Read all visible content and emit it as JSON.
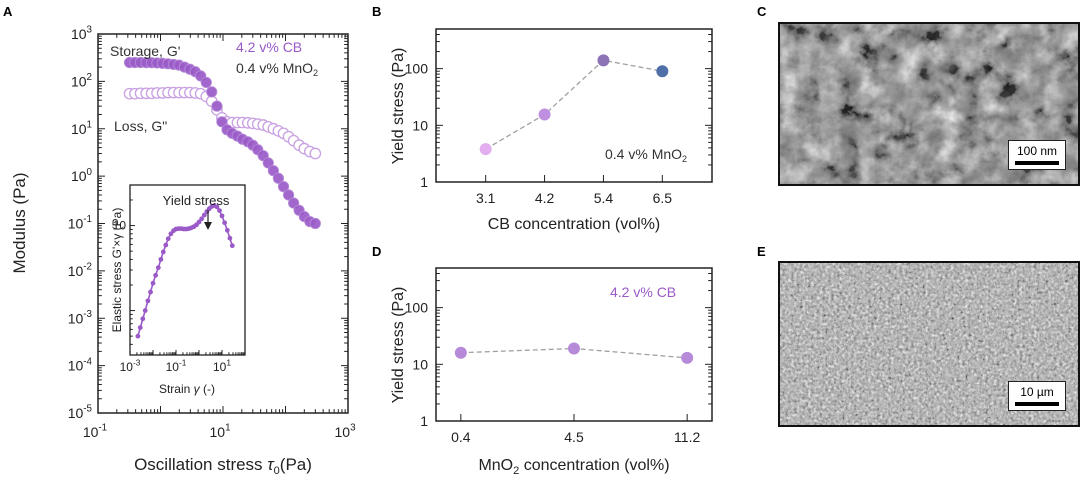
{
  "panel_labels": {
    "a": "A",
    "b": "B",
    "c": "C",
    "d": "D",
    "e": "E"
  },
  "colors": {
    "purple": "#9a5ac8",
    "purple_light": "#c9a0e3",
    "pink": "#e3aef0",
    "mid_purple": "#8c74b6",
    "blue": "#4f6fa8",
    "dashed": "#a0a0a0",
    "text": "#222222"
  },
  "sem_c": {
    "scale_label": "100 nm"
  },
  "sem_e": {
    "scale_label": "10 µm"
  },
  "chart_data": [
    {
      "id": "A",
      "type": "scatter",
      "x_scale": "log",
      "y_scale": "log",
      "xlabel": "Oscillation stress",
      "xlabel_symbol": "τ",
      "xlabel_sub": "0",
      "xlabel_unit": "(Pa)",
      "ylabel": "Modulus (Pa)",
      "xlim": [
        0.1,
        1000
      ],
      "ylim": [
        1e-05,
        1000
      ],
      "x_ticks": [
        {
          "v": 0.1,
          "b": "10",
          "e": "-1"
        },
        {
          "v": 10,
          "b": "10",
          "e": "1"
        },
        {
          "v": 1000,
          "b": "10",
          "e": "3"
        }
      ],
      "y_ticks": [
        {
          "v": 1000,
          "b": "10",
          "e": "3"
        },
        {
          "v": 100,
          "b": "10",
          "e": "2"
        },
        {
          "v": 10,
          "b": "10",
          "e": "1"
        },
        {
          "v": 1,
          "b": "10",
          "e": "0"
        },
        {
          "v": 0.1,
          "b": "10",
          "e": "-1"
        },
        {
          "v": 0.01,
          "b": "10",
          "e": "-2"
        },
        {
          "v": 0.001,
          "b": "10",
          "e": "-3"
        },
        {
          "v": 0.0001,
          "b": "10",
          "e": "-4"
        },
        {
          "v": 1e-05,
          "b": "10",
          "e": "-5"
        }
      ],
      "series": [
        {
          "name": "Storage, G'",
          "marker": "filled",
          "x": [
            0.32,
            0.39,
            0.48,
            0.59,
            0.72,
            0.88,
            1.08,
            1.32,
            1.62,
            1.98,
            2.42,
            2.96,
            3.6,
            4.4,
            5.4,
            6.6,
            8.0,
            9.6,
            11.6,
            14,
            17,
            20.5,
            25,
            30,
            36,
            44,
            53,
            64,
            77,
            93,
            112,
            135,
            165,
            200,
            245,
            300
          ],
          "y": [
            250,
            250,
            250,
            248,
            248,
            245,
            240,
            235,
            228,
            220,
            200,
            180,
            160,
            130,
            95,
            60,
            30,
            14,
            9.5,
            8,
            7,
            6,
            5.3,
            4.5,
            3.6,
            2.7,
            1.9,
            1.3,
            0.9,
            0.6,
            0.4,
            0.27,
            0.19,
            0.14,
            0.11,
            0.1
          ]
        },
        {
          "name": "Loss, G\"",
          "marker": "open",
          "x": [
            0.32,
            0.39,
            0.48,
            0.59,
            0.72,
            0.88,
            1.08,
            1.32,
            1.62,
            1.98,
            2.42,
            2.96,
            3.6,
            4.4,
            5.4,
            6.6,
            8.0,
            9.6,
            11.6,
            14,
            17,
            20.5,
            25,
            30,
            36,
            44,
            53,
            64,
            77,
            93,
            112,
            135,
            165,
            200,
            245,
            300
          ],
          "y": [
            55,
            55,
            56,
            56,
            56,
            57,
            57,
            58,
            58,
            58,
            58,
            58,
            57,
            55,
            48,
            38,
            25,
            17,
            14,
            13.5,
            13.5,
            13.5,
            13.3,
            13,
            12.5,
            12,
            11,
            10,
            9,
            8,
            6.8,
            5.6,
            4.5,
            3.8,
            3.3,
            3.0
          ]
        }
      ],
      "annotations": {
        "storage": "Storage, G'",
        "loss": "Loss, G\"",
        "cb": "4.2 v% CB",
        "mno2_prefix": "0.4 v% MnO",
        "mno2_sub": "2"
      }
    },
    {
      "id": "A-inset",
      "type": "line",
      "x_scale": "log",
      "y_scale": "log",
      "xlabel": "Strain",
      "xlabel_symbol": "γ",
      "xlabel_unit": "(-)",
      "ylabel": "Elastic stress G'×γ (Pa)",
      "annotation": "Yield stress",
      "xlim": [
        0.001,
        100
      ],
      "ylim": [
        0.3,
        30
      ],
      "x_ticks": [
        {
          "v": 0.001,
          "b": "10",
          "e": "-3"
        },
        {
          "v": 0.1,
          "b": "10",
          "e": "-1"
        },
        {
          "v": 10,
          "b": "10",
          "e": "1"
        }
      ],
      "y_ticks": [
        {
          "v": 10,
          "label": "10"
        }
      ],
      "x": [
        0.0022,
        0.0028,
        0.0036,
        0.0046,
        0.006,
        0.0078,
        0.01,
        0.013,
        0.017,
        0.022,
        0.028,
        0.036,
        0.046,
        0.06,
        0.078,
        0.1,
        0.13,
        0.17,
        0.22,
        0.28,
        0.36,
        0.46,
        0.6,
        0.78,
        1.0,
        1.3,
        1.7,
        2.2,
        2.8,
        3.6,
        4.6,
        6.0,
        7.8,
        10,
        13,
        17,
        22,
        28
      ],
      "y": [
        0.5,
        0.63,
        0.8,
        1.0,
        1.3,
        1.65,
        2.1,
        2.6,
        3.2,
        4.0,
        4.9,
        5.9,
        7.0,
        8.0,
        8.7,
        9.1,
        9.2,
        9.2,
        9.1,
        9.1,
        9.2,
        9.4,
        9.7,
        10.2,
        11.0,
        12.0,
        13.3,
        14.6,
        15.8,
        16.8,
        17.2,
        16.6,
        15.0,
        13.0,
        10.8,
        8.8,
        7.1,
        5.8
      ]
    },
    {
      "id": "B",
      "type": "scatter",
      "y_scale": "log",
      "xlabel": "CB concentration (vol%)",
      "ylabel": "Yield stress (Pa)",
      "ylim": [
        1,
        500
      ],
      "categories": [
        "3.1",
        "4.2",
        "5.4",
        "6.5"
      ],
      "values": [
        3.8,
        15.5,
        140,
        90
      ],
      "point_colors": [
        "#e3aef0",
        "#c090e0",
        "#8c74b6",
        "#4f6fa8"
      ],
      "y_ticks": [
        {
          "v": 1,
          "label": "1"
        },
        {
          "v": 10,
          "label": "10"
        },
        {
          "v": 100,
          "label": "100"
        }
      ],
      "annotation_prefix": "0.4 v% MnO",
      "annotation_sub": "2"
    },
    {
      "id": "D",
      "type": "scatter",
      "y_scale": "log",
      "xlabel_prefix": "MnO",
      "xlabel_sub": "2",
      "xlabel_suffix": " concentration (vol%)",
      "ylabel": "Yield stress (Pa)",
      "ylim": [
        1,
        500
      ],
      "categories": [
        "0.4",
        "4.5",
        "11.2"
      ],
      "values": [
        16,
        19,
        13
      ],
      "point_colors": [
        "#b68ad8",
        "#b68ad8",
        "#b68ad8"
      ],
      "y_ticks": [
        {
          "v": 1,
          "label": "1"
        },
        {
          "v": 10,
          "label": "10"
        },
        {
          "v": 100,
          "label": "100"
        }
      ],
      "annotation": "4.2 v% CB"
    }
  ]
}
